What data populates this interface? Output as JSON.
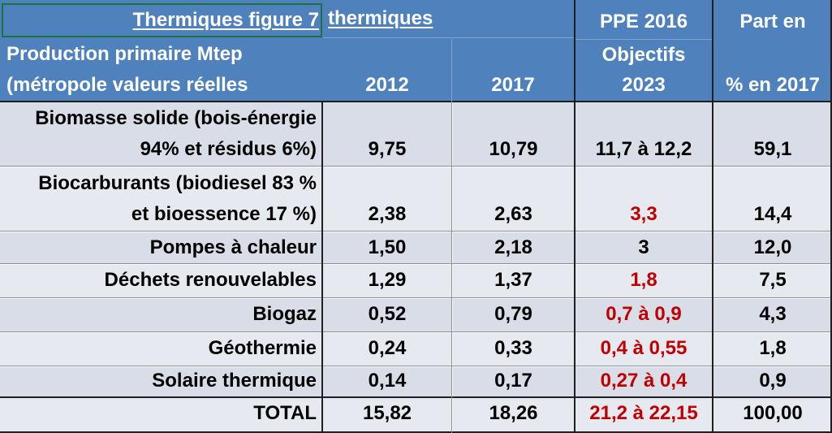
{
  "header": {
    "title_a": "Thermiques figure 7",
    "title_b": "thermiques",
    "label_line1": "Production primaire Mtep",
    "label_line2": "(métropole valeurs réelles",
    "col_2012": "2012",
    "col_2017": "2017",
    "ppe_line1": "PPE 2016",
    "ppe_line2": "Objectifs",
    "ppe_line3": "2023",
    "part_line1": "Part en",
    "part_line2": "% en 2017"
  },
  "rows": [
    {
      "label_line1": "Biomasse solide (bois-énergie",
      "label_line2": "94% et résidus 6%)",
      "v2012": "9,75",
      "v2017": "10,79",
      "ppe": "11,7 à 12,2",
      "ppe_red": false,
      "part": "59,1"
    },
    {
      "label_line1": "Biocarburants (biodiesel 83 %",
      "label_line2": "et bioessence 17 %)",
      "v2012": "2,38",
      "v2017": "2,63",
      "ppe": "3,3",
      "ppe_red": true,
      "part": "14,4"
    },
    {
      "label": "Pompes à chaleur",
      "v2012": "1,50",
      "v2017": "2,18",
      "ppe": "3",
      "ppe_red": false,
      "part": "12,0"
    },
    {
      "label": "Déchets renouvelables",
      "v2012": "1,29",
      "v2017": "1,37",
      "ppe": "1,8",
      "ppe_red": true,
      "part": "7,5"
    },
    {
      "label": "Biogaz",
      "v2012": "0,52",
      "v2017": "0,79",
      "ppe": "0,7 à 0,9",
      "ppe_red": true,
      "part": "4,3"
    },
    {
      "label": "Géothermie",
      "v2012": "0,24",
      "v2017": "0,33",
      "ppe": "0,4 à 0,55",
      "ppe_red": true,
      "part": "1,8"
    },
    {
      "label": "Solaire thermique",
      "v2012": "0,14",
      "v2017": "0,17",
      "ppe": "0,27 à 0,4",
      "ppe_red": true,
      "part": "0,9"
    }
  ],
  "total": {
    "label": "TOTAL",
    "v2012": "15,82",
    "v2017": "18,26",
    "ppe": "21,2 à 22,15",
    "part": "100,00"
  },
  "colors": {
    "header_bg": "#4f81bd",
    "header_text": "#ffffff",
    "row_dark": "#d9dde8",
    "row_light": "#e6e9f0",
    "red_text": "#c00000"
  }
}
